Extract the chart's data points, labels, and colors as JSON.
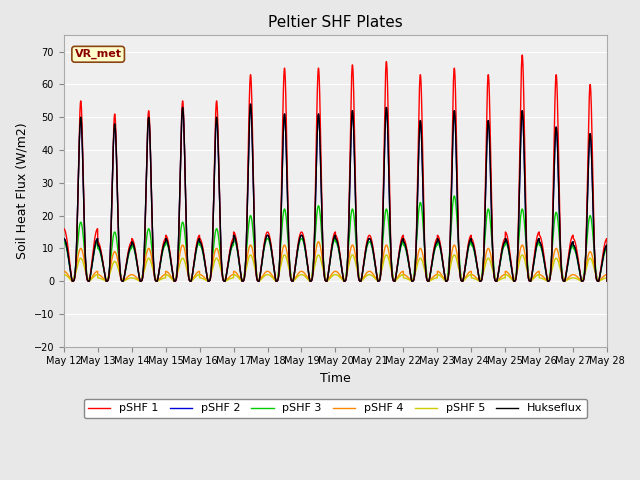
{
  "title": "Peltier SHF Plates",
  "xlabel": "Time",
  "ylabel": "Soil Heat Flux (W/m2)",
  "ylim": [
    -20,
    75
  ],
  "yticks": [
    -20,
    -10,
    0,
    10,
    20,
    30,
    40,
    50,
    60,
    70
  ],
  "background_color": "#e8e8e8",
  "plot_bg_color": "#efefef",
  "legend_labels": [
    "pSHF 1",
    "pSHF 2",
    "pSHF 3",
    "pSHF 4",
    "pSHF 5",
    "Hukseflux"
  ],
  "legend_colors": [
    "#ff0000",
    "#0000dd",
    "#00cc00",
    "#ff8800",
    "#cccc00",
    "#000000"
  ],
  "annotation_text": "VR_met",
  "n_days": 16,
  "points_per_day": 288,
  "day_start": 12
}
